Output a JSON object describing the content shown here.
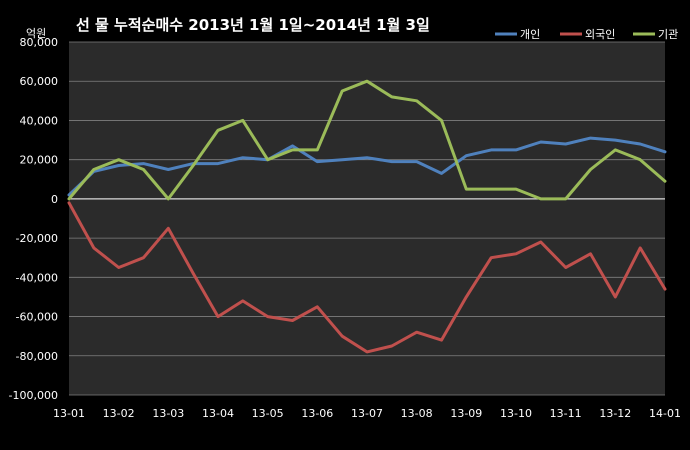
{
  "chart_data": {
    "type": "line",
    "title": "선 물 누적순매수 2013년 1월 1일~2014년 1월 3일",
    "ylabel": "억원",
    "xlabel": "",
    "ylim": [
      -100000,
      80000
    ],
    "y_ticks": [
      -100000,
      -80000,
      -60000,
      -40000,
      -20000,
      0,
      20000,
      40000,
      60000,
      80000
    ],
    "y_tick_labels": [
      "-100,000",
      "-80,000",
      "-60,000",
      "-40,000",
      "-20,000",
      "0",
      "20,000",
      "40,000",
      "60,000",
      "80,000"
    ],
    "x_tick_labels": [
      "13-01",
      "13-02",
      "13-03",
      "13-04",
      "13-05",
      "13-06",
      "13-07",
      "13-08",
      "13-09",
      "13-10",
      "13-11",
      "13-12",
      "14-01"
    ],
    "grid": true,
    "legend_position": "top-right",
    "x": [
      0,
      0.5,
      1,
      1.5,
      2,
      2.5,
      3,
      3.5,
      4,
      4.5,
      5,
      5.5,
      6,
      6.5,
      7,
      7.5,
      8,
      8.5,
      9,
      9.5,
      10,
      10.5,
      11,
      11.5,
      12
    ],
    "series": [
      {
        "name": "개인",
        "color": "#4f81bd",
        "values": [
          2000,
          14000,
          17000,
          18000,
          15000,
          18000,
          18000,
          21000,
          20000,
          27000,
          19000,
          20000,
          21000,
          19000,
          19000,
          13000,
          22000,
          25000,
          25000,
          29000,
          28000,
          31000,
          30000,
          28000,
          24000
        ]
      },
      {
        "name": "외국인",
        "color": "#c0504d",
        "values": [
          -2000,
          -25000,
          -35000,
          -30000,
          -15000,
          -38000,
          -60000,
          -52000,
          -60000,
          -62000,
          -55000,
          -70000,
          -78000,
          -75000,
          -68000,
          -72000,
          -50000,
          -30000,
          -28000,
          -22000,
          -35000,
          -28000,
          -50000,
          -25000,
          -46000
        ]
      },
      {
        "name": "기관",
        "color": "#9bbb59",
        "values": [
          0,
          15000,
          20000,
          15000,
          0,
          17000,
          35000,
          40000,
          20000,
          25000,
          25000,
          55000,
          60000,
          52000,
          50000,
          40000,
          5000,
          5000,
          5000,
          0,
          0,
          15000,
          25000,
          20000,
          9000
        ]
      }
    ]
  }
}
